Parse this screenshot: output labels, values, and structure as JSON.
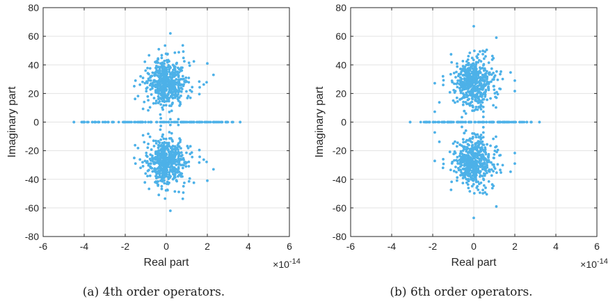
{
  "colors": {
    "points": "#4DB1E8",
    "grid": "#e3e3e3",
    "axis": "#262626"
  },
  "chart_data": [
    {
      "type": "scatter",
      "title": "",
      "xlabel": "Real part",
      "ylabel": "Imaginary part",
      "x_exponent_label": "×10",
      "x_exponent": "-14",
      "xlim": [
        -6,
        6
      ],
      "ylim": [
        -80,
        80
      ],
      "xticks": [
        -6,
        -4,
        -2,
        0,
        2,
        4,
        6
      ],
      "yticks": [
        80,
        60,
        40,
        20,
        0,
        -20,
        -40,
        -60,
        -80
      ],
      "grid": true,
      "caption": "(a) 4th order operators.",
      "real_axis_extent": [
        -4.5,
        3.6
      ],
      "band_mean_abs_imag": 28,
      "band_max_abs_imag": 62,
      "sample_points": [
        {
          "x": -4.5,
          "y": 0
        },
        {
          "x": 3.6,
          "y": 0
        },
        {
          "x": -3.8,
          "y": 0
        },
        {
          "x": -3.6,
          "y": 0
        },
        {
          "x": 2.3,
          "y": 33
        },
        {
          "x": 2.3,
          "y": -33
        },
        {
          "x": 2.0,
          "y": 41
        },
        {
          "x": 2.0,
          "y": -41
        },
        {
          "x": 0.2,
          "y": 62
        },
        {
          "x": 0.2,
          "y": -62
        },
        {
          "x": -1.5,
          "y": 29
        },
        {
          "x": -1.5,
          "y": -29
        }
      ]
    },
    {
      "type": "scatter",
      "title": "",
      "xlabel": "Real part",
      "ylabel": "Imaginary part",
      "x_exponent_label": "×10",
      "x_exponent": "-14",
      "xlim": [
        -6,
        6
      ],
      "ylim": [
        -80,
        80
      ],
      "xticks": [
        -6,
        -4,
        -2,
        0,
        2,
        4,
        6
      ],
      "yticks": [
        80,
        60,
        40,
        20,
        0,
        -20,
        -40,
        -60,
        -80
      ],
      "grid": true,
      "caption": "(b) 6th order operators.",
      "real_axis_extent": [
        -3.1,
        3.2
      ],
      "band_mean_abs_imag": 28,
      "band_max_abs_imag": 67,
      "sample_points": [
        {
          "x": -3.1,
          "y": 0
        },
        {
          "x": 3.2,
          "y": 0
        },
        {
          "x": 2.0,
          "y": 29
        },
        {
          "x": 2.0,
          "y": -29
        },
        {
          "x": 1.1,
          "y": 59
        },
        {
          "x": 1.1,
          "y": -59
        },
        {
          "x": 0.0,
          "y": 67
        },
        {
          "x": 0.0,
          "y": -67
        },
        {
          "x": -1.5,
          "y": 32
        },
        {
          "x": -1.5,
          "y": -32
        },
        {
          "x": -1.0,
          "y": 15
        },
        {
          "x": -1.0,
          "y": -15
        }
      ]
    }
  ]
}
